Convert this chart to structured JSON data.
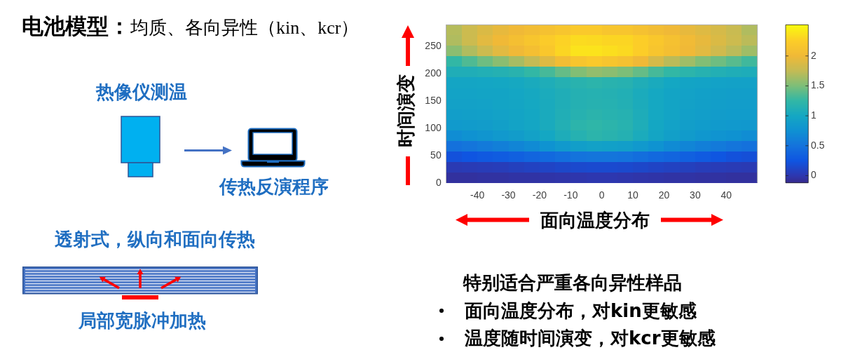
{
  "chart_data": {
    "type": "heatmap",
    "title": "电池模型：",
    "subtitle": "均质、各向异性（kin、kcr）",
    "xlabel": "面向温度分布",
    "ylabel": "时间演变",
    "x": [
      -47.5,
      -42.5,
      -37.5,
      -32.5,
      -27.5,
      -22.5,
      -17.5,
      -12.5,
      -7.5,
      -2.5,
      2.5,
      7.5,
      12.5,
      17.5,
      22.5,
      27.5,
      32.5,
      37.5,
      42.5,
      47.5
    ],
    "y": [
      280.3,
      261.0,
      241.7,
      222.3,
      203.0,
      183.7,
      164.3,
      145.0,
      125.7,
      106.3,
      87.0,
      67.7,
      48.3,
      29.0,
      9.7
    ],
    "cells": [
      [
        1.7,
        1.8,
        1.88,
        1.95,
        2.0,
        2.05,
        2.1,
        2.15,
        2.2,
        2.2,
        2.15,
        2.15,
        2.1,
        2.05,
        2.0,
        1.95,
        1.9,
        1.85,
        1.78,
        1.68
      ],
      [
        1.68,
        1.8,
        1.92,
        2.0,
        2.08,
        2.15,
        2.22,
        2.28,
        2.33,
        2.32,
        2.3,
        2.3,
        2.25,
        2.18,
        2.1,
        2.02,
        1.95,
        1.88,
        1.8,
        1.72
      ],
      [
        1.55,
        1.68,
        1.8,
        1.92,
        2.0,
        2.08,
        2.18,
        2.3,
        2.38,
        2.38,
        2.35,
        2.32,
        2.25,
        2.15,
        2.08,
        2.0,
        1.92,
        1.82,
        1.72,
        1.62
      ],
      [
        1.25,
        1.35,
        1.45,
        1.55,
        1.65,
        1.75,
        1.9,
        2.05,
        2.15,
        2.2,
        2.15,
        2.1,
        2.0,
        1.85,
        1.72,
        1.62,
        1.52,
        1.45,
        1.38,
        1.3
      ],
      [
        1.1,
        1.1,
        1.12,
        1.14,
        1.18,
        1.25,
        1.32,
        1.42,
        1.52,
        1.58,
        1.55,
        1.5,
        1.42,
        1.32,
        1.25,
        1.2,
        1.16,
        1.13,
        1.1,
        1.08
      ],
      [
        0.98,
        0.98,
        0.99,
        1.0,
        1.02,
        1.05,
        1.09,
        1.14,
        1.18,
        1.2,
        1.18,
        1.16,
        1.1,
        1.05,
        1.0,
        0.97,
        0.95,
        0.94,
        0.93,
        0.93
      ],
      [
        0.95,
        0.95,
        0.96,
        0.97,
        0.99,
        1.02,
        1.06,
        1.1,
        1.14,
        1.15,
        1.14,
        1.12,
        1.06,
        1.01,
        0.97,
        0.94,
        0.92,
        0.91,
        0.9,
        0.9
      ],
      [
        0.93,
        0.93,
        0.94,
        0.96,
        0.98,
        1.01,
        1.05,
        1.1,
        1.14,
        1.16,
        1.15,
        1.13,
        1.07,
        1.01,
        0.97,
        0.93,
        0.91,
        0.9,
        0.89,
        0.89
      ],
      [
        0.9,
        0.91,
        0.92,
        0.94,
        0.97,
        1.0,
        1.05,
        1.11,
        1.16,
        1.19,
        1.17,
        1.15,
        1.08,
        1.01,
        0.96,
        0.92,
        0.9,
        0.88,
        0.87,
        0.87
      ],
      [
        0.85,
        0.86,
        0.88,
        0.91,
        0.95,
        0.99,
        1.05,
        1.13,
        1.2,
        1.23,
        1.2,
        1.17,
        1.09,
        1.0,
        0.94,
        0.9,
        0.87,
        0.85,
        0.84,
        0.83
      ],
      [
        0.72,
        0.76,
        0.8,
        0.84,
        0.88,
        0.93,
        1.0,
        1.08,
        1.15,
        1.2,
        1.18,
        1.14,
        1.06,
        0.98,
        0.91,
        0.86,
        0.82,
        0.79,
        0.76,
        0.72
      ],
      [
        0.48,
        0.52,
        0.56,
        0.6,
        0.65,
        0.7,
        0.77,
        0.84,
        0.9,
        0.93,
        0.92,
        0.9,
        0.84,
        0.77,
        0.7,
        0.65,
        0.6,
        0.56,
        0.52,
        0.48
      ],
      [
        0.22,
        0.25,
        0.28,
        0.31,
        0.34,
        0.38,
        0.42,
        0.46,
        0.5,
        0.52,
        0.52,
        0.5,
        0.46,
        0.42,
        0.38,
        0.34,
        0.3,
        0.26,
        0.22,
        0.2
      ],
      [
        0.02,
        0.03,
        0.04,
        0.05,
        0.07,
        0.09,
        0.11,
        0.13,
        0.15,
        0.16,
        0.16,
        0.15,
        0.13,
        0.11,
        0.09,
        0.07,
        0.05,
        0.04,
        0.03,
        0.02
      ],
      [
        -0.06,
        -0.06,
        -0.05,
        -0.05,
        -0.04,
        -0.04,
        -0.03,
        -0.02,
        -0.01,
        0.0,
        0.0,
        -0.01,
        -0.02,
        -0.03,
        -0.04,
        -0.04,
        -0.05,
        -0.05,
        -0.06,
        -0.06
      ]
    ],
    "xlim": [
      -50,
      50
    ],
    "xticks": [
      -40,
      -30,
      -20,
      -10,
      0,
      10,
      20,
      30,
      40
    ],
    "ylim": [
      0,
      290
    ],
    "yticks": [
      0,
      50,
      100,
      150,
      200,
      250
    ],
    "clim": [
      -0.12,
      2.52
    ],
    "cticks": [
      0,
      0.5,
      1,
      1.5,
      2
    ],
    "annotations": [
      "热像仪测温",
      "传热反演程序",
      "透射式，纵向和面向传热",
      "局部宽脉冲加热",
      "特别适合严重各向异性样品",
      "面向温度分布，对kin更敏感",
      "温度随时间演变，对kcr更敏感"
    ]
  }
}
